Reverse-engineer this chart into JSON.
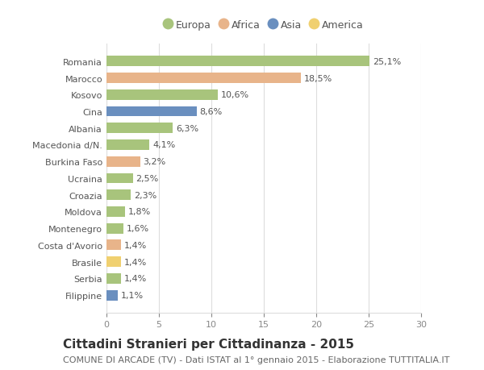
{
  "categories": [
    "Romania",
    "Marocco",
    "Kosovo",
    "Cina",
    "Albania",
    "Macedonia d/N.",
    "Burkina Faso",
    "Ucraina",
    "Croazia",
    "Moldova",
    "Montenegro",
    "Costa d'Avorio",
    "Brasile",
    "Serbia",
    "Filippine"
  ],
  "values": [
    25.1,
    18.5,
    10.6,
    8.6,
    6.3,
    4.1,
    3.2,
    2.5,
    2.3,
    1.8,
    1.6,
    1.4,
    1.4,
    1.4,
    1.1
  ],
  "labels": [
    "25,1%",
    "18,5%",
    "10,6%",
    "8,6%",
    "6,3%",
    "4,1%",
    "3,2%",
    "2,5%",
    "2,3%",
    "1,8%",
    "1,6%",
    "1,4%",
    "1,4%",
    "1,4%",
    "1,1%"
  ],
  "colors": [
    "#a8c47c",
    "#e8b48a",
    "#a8c47c",
    "#6a8fbf",
    "#a8c47c",
    "#a8c47c",
    "#e8b48a",
    "#a8c47c",
    "#a8c47c",
    "#a8c47c",
    "#a8c47c",
    "#e8b48a",
    "#f0d070",
    "#a8c47c",
    "#6a8fbf"
  ],
  "legend": [
    {
      "label": "Europa",
      "color": "#a8c47c"
    },
    {
      "label": "Africa",
      "color": "#e8b48a"
    },
    {
      "label": "Asia",
      "color": "#6a8fbf"
    },
    {
      "label": "America",
      "color": "#f0d070"
    }
  ],
  "title": "Cittadini Stranieri per Cittadinanza - 2015",
  "subtitle": "COMUNE DI ARCADE (TV) - Dati ISTAT al 1° gennaio 2015 - Elaborazione TUTTITALIA.IT",
  "xlim": [
    0,
    30
  ],
  "xticks": [
    0,
    5,
    10,
    15,
    20,
    25,
    30
  ],
  "bg_color": "#ffffff",
  "grid_color": "#dddddd",
  "bar_height": 0.62,
  "label_fontsize": 8.0,
  "title_fontsize": 11,
  "subtitle_fontsize": 8.0,
  "tick_fontsize": 8.0,
  "legend_fontsize": 9.0
}
